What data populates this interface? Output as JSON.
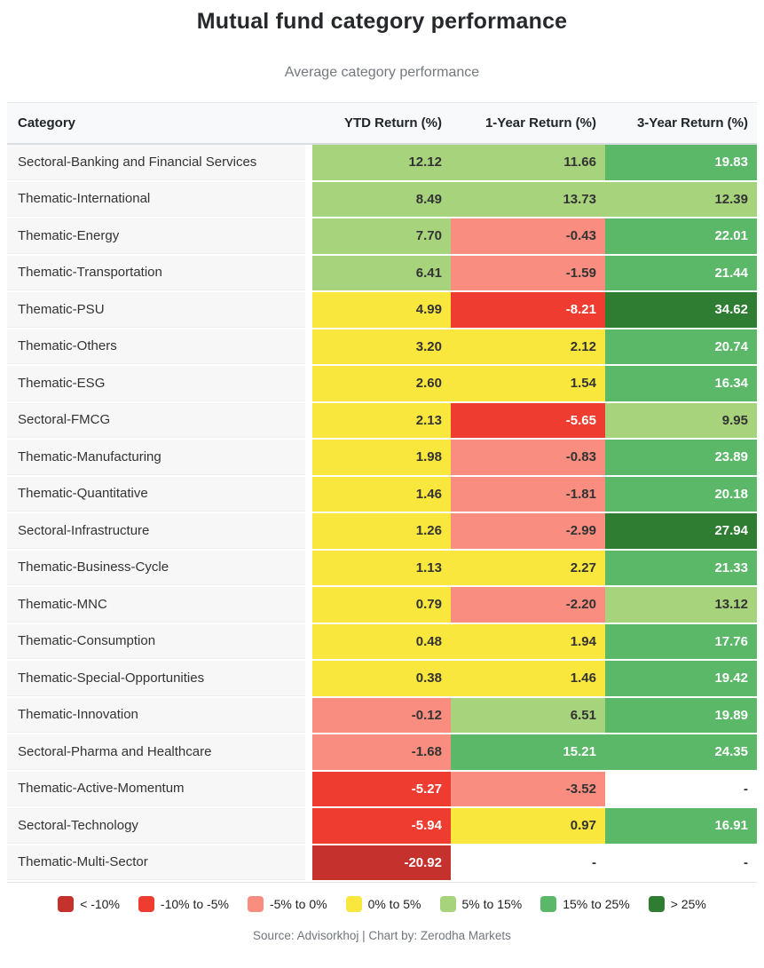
{
  "chart_data": {
    "type": "heatmap",
    "title": "Mutual fund category performance",
    "subtitle": "Average category performance",
    "columns": [
      "Category",
      "YTD Return (%)",
      "1-Year Return (%)",
      "3-Year Return (%)"
    ],
    "rows": [
      {
        "category": "Sectoral-Banking and Financial Services",
        "values": [
          "12.12",
          "11.66",
          "19.83"
        ]
      },
      {
        "category": "Thematic-International",
        "values": [
          "8.49",
          "13.73",
          "12.39"
        ]
      },
      {
        "category": "Thematic-Energy",
        "values": [
          "7.70",
          "-0.43",
          "22.01"
        ]
      },
      {
        "category": "Thematic-Transportation",
        "values": [
          "6.41",
          "-1.59",
          "21.44"
        ]
      },
      {
        "category": "Thematic-PSU",
        "values": [
          "4.99",
          "-8.21",
          "34.62"
        ]
      },
      {
        "category": "Thematic-Others",
        "values": [
          "3.20",
          "2.12",
          "20.74"
        ]
      },
      {
        "category": "Thematic-ESG",
        "values": [
          "2.60",
          "1.54",
          "16.34"
        ]
      },
      {
        "category": "Sectoral-FMCG",
        "values": [
          "2.13",
          "-5.65",
          "9.95"
        ]
      },
      {
        "category": "Thematic-Manufacturing",
        "values": [
          "1.98",
          "-0.83",
          "23.89"
        ]
      },
      {
        "category": "Thematic-Quantitative",
        "values": [
          "1.46",
          "-1.81",
          "20.18"
        ]
      },
      {
        "category": "Sectoral-Infrastructure",
        "values": [
          "1.26",
          "-2.99",
          "27.94"
        ]
      },
      {
        "category": "Thematic-Business-Cycle",
        "values": [
          "1.13",
          "2.27",
          "21.33"
        ]
      },
      {
        "category": "Thematic-MNC",
        "values": [
          "0.79",
          "-2.20",
          "13.12"
        ]
      },
      {
        "category": "Thematic-Consumption",
        "values": [
          "0.48",
          "1.94",
          "17.76"
        ]
      },
      {
        "category": "Thematic-Special-Opportunities",
        "values": [
          "0.38",
          "1.46",
          "19.42"
        ]
      },
      {
        "category": "Thematic-Innovation",
        "values": [
          "-0.12",
          "6.51",
          "19.89"
        ]
      },
      {
        "category": "Sectoral-Pharma and Healthcare",
        "values": [
          "-1.68",
          "15.21",
          "24.35"
        ]
      },
      {
        "category": "Thematic-Active-Momentum",
        "values": [
          "-5.27",
          "-3.52",
          "-"
        ]
      },
      {
        "category": "Sectoral-Technology",
        "values": [
          "-5.94",
          "0.97",
          "16.91"
        ]
      },
      {
        "category": "Thematic-Multi-Sector",
        "values": [
          "-20.92",
          "-",
          "-"
        ]
      }
    ],
    "legend_bins": [
      {
        "label": "< -10%",
        "color": "#c5312d",
        "text_color": "#ffffff",
        "max": -10
      },
      {
        "label": "-10% to -5%",
        "color": "#ee3d30",
        "text_color": "#ffffff",
        "max": -5
      },
      {
        "label": "-5% to 0%",
        "color": "#f98d80",
        "text_color": "#333333",
        "max": 0
      },
      {
        "label": "0% to 5%",
        "color": "#fae73e",
        "text_color": "#333333",
        "max": 5
      },
      {
        "label": "5% to 15%",
        "color": "#a7d37d",
        "text_color": "#333333",
        "max": 15
      },
      {
        "label": "15% to 25%",
        "color": "#5bb869",
        "text_color": "#ffffff",
        "max": 25
      },
      {
        "label": "> 25%",
        "color": "#2e7d32",
        "text_color": "#ffffff",
        "max": null
      }
    ],
    "empty_cell": {
      "label": "-",
      "color": "#ffffff",
      "text_color": "#333333"
    },
    "source": "Source: Advisorkhoj | Chart by: Zerodha Markets"
  }
}
